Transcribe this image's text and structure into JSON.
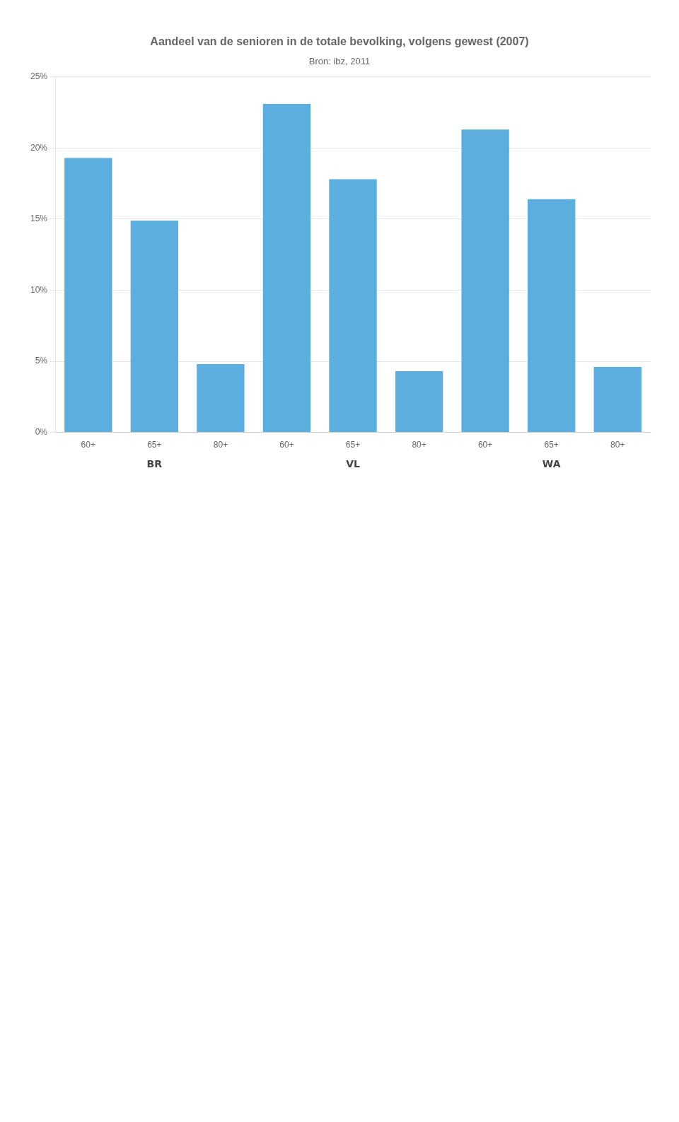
{
  "chart_data": {
    "type": "bar",
    "title": "Aandeel van de senioren in de totale bevolking, volgens gewest (2007)",
    "subtitle": "Bron: ibz, 2011",
    "categories": [
      "60+",
      "65+",
      "80+",
      "60+",
      "65+",
      "80+",
      "60+",
      "65+",
      "80+"
    ],
    "values": [
      19.3,
      14.9,
      4.8,
      23.1,
      17.8,
      4.3,
      21.3,
      16.4,
      4.6
    ],
    "color": "#5BAEDE",
    "ylim": [
      0,
      25
    ],
    "yticks": [
      {
        "value": 0,
        "label": "0%"
      },
      {
        "value": 5,
        "label": "5%"
      },
      {
        "value": 10,
        "label": "10%"
      },
      {
        "value": 15,
        "label": "15%"
      },
      {
        "value": 20,
        "label": "20%"
      },
      {
        "value": 25,
        "label": "25%"
      }
    ],
    "grid": true,
    "annotations": [
      "BR",
      "VL",
      "WA"
    ]
  }
}
